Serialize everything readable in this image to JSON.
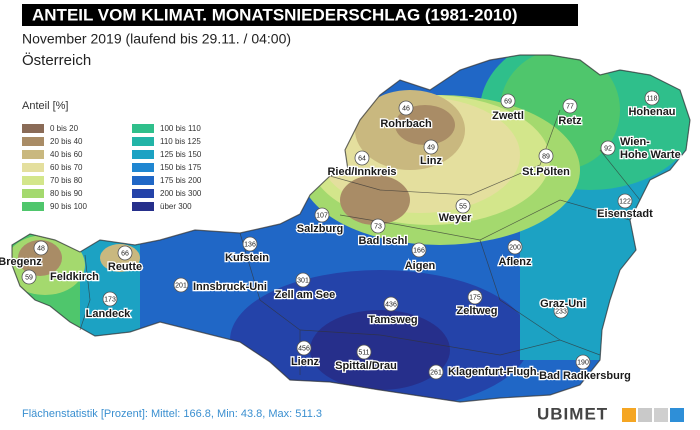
{
  "header": {
    "title": "ANTEIL VOM KLIMAT. MONATSNIEDERSCHLAG (1981-2010)",
    "subtitle": "November 2019 (laufend bis 29.11. / 04:00)",
    "region": "Österreich"
  },
  "legend": {
    "title": "Anteil [%]",
    "items": [
      {
        "label": "0 bis 20",
        "color": "#8a6b57"
      },
      {
        "label": "20 bis 40",
        "color": "#a98c66"
      },
      {
        "label": "40 bis 60",
        "color": "#c9b87f"
      },
      {
        "label": "60 bis 70",
        "color": "#e4df9e"
      },
      {
        "label": "70 bis 80",
        "color": "#d3e68b"
      },
      {
        "label": "80 bis 90",
        "color": "#a4d96e"
      },
      {
        "label": "90 bis 100",
        "color": "#4fc66c"
      },
      {
        "label": "100 bis 110",
        "color": "#2fbf8b"
      },
      {
        "label": "110 bis 125",
        "color": "#22b4a7"
      },
      {
        "label": "125 bis 150",
        "color": "#1ca2c3"
      },
      {
        "label": "150 bis 175",
        "color": "#1f86d1"
      },
      {
        "label": "175 bis 200",
        "color": "#2067c6"
      },
      {
        "label": "200 bis 300",
        "color": "#2443a9"
      },
      {
        "label": "über 300",
        "color": "#262f8b"
      }
    ]
  },
  "stations": [
    {
      "name": "Bregenz",
      "value": "48"
    },
    {
      "name": "Feldkirch",
      "value": "59"
    },
    {
      "name": "Reutte",
      "value": "66"
    },
    {
      "name": "Landeck",
      "value": "173"
    },
    {
      "name": "Innsbruck-Uni",
      "value": "201"
    },
    {
      "name": "Kufstein",
      "value": "136"
    },
    {
      "name": "Zell am See",
      "value": "301"
    },
    {
      "name": "Salzburg",
      "value": "107"
    },
    {
      "name": "Bad Ischl",
      "value": "73"
    },
    {
      "name": "Ried/Innkreis",
      "value": "64"
    },
    {
      "name": "Rohrbach",
      "value": "46"
    },
    {
      "name": "Linz",
      "value": "49"
    },
    {
      "name": "Zwettl",
      "value": "69"
    },
    {
      "name": "Retz",
      "value": "77"
    },
    {
      "name": "Hohenau",
      "value": "118"
    },
    {
      "name": "Wien-Hohe Warte",
      "value": "92"
    },
    {
      "name": "St.Pölten",
      "value": "89"
    },
    {
      "name": "Weyer",
      "value": "55"
    },
    {
      "name": "Eisenstadt",
      "value": "122"
    },
    {
      "name": "Aigen",
      "value": "166"
    },
    {
      "name": "Aflenz",
      "value": "200"
    },
    {
      "name": "Zeltweg",
      "value": "175"
    },
    {
      "name": "Graz-Uni",
      "value": "233"
    },
    {
      "name": "Tamsweg",
      "value": "436"
    },
    {
      "name": "Lienz",
      "value": "456"
    },
    {
      "name": "Spittal/Drau",
      "value": "511"
    },
    {
      "name": "Klagenfurt-Flugh.",
      "value": "261"
    },
    {
      "name": "Bad Radkersburg",
      "value": "190"
    }
  ],
  "footer": {
    "statistics": "Flächenstatistik [Prozent]: Mittel: 166.8, Min: 43.8, Max: 511.3",
    "brand": "UBIMET"
  }
}
